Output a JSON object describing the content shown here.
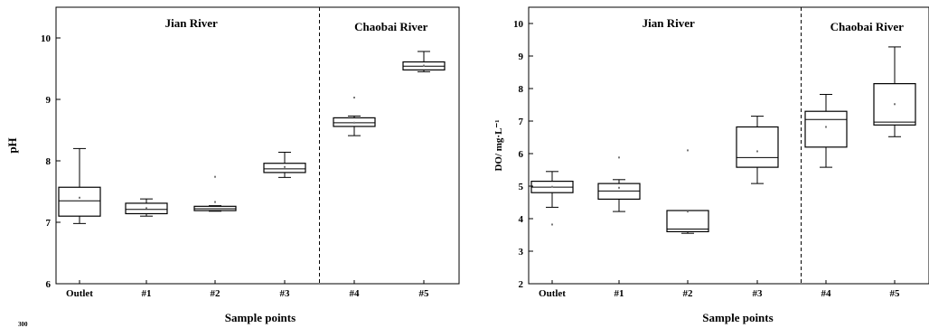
{
  "corner_fragment": "300",
  "chart_data": [
    {
      "type": "box",
      "xlabel": "Sample points",
      "ylabel": "pH",
      "ylim": [
        6,
        10.5
      ],
      "yticks": [
        6,
        7,
        8,
        9,
        10
      ],
      "categories": [
        "Outlet",
        "#1",
        "#2",
        "#3",
        "#4",
        "#5"
      ],
      "regions": [
        {
          "label": "Jian River",
          "categories": [
            "Outlet",
            "#1",
            "#2",
            "#3"
          ]
        },
        {
          "label": "Chaobai River",
          "categories": [
            "#4",
            "#5"
          ]
        }
      ],
      "divider_after_category": 4,
      "boxes": [
        {
          "min": 6.98,
          "q1": 7.1,
          "median": 7.35,
          "q3": 7.57,
          "max": 8.2,
          "mean": 7.4,
          "outliers": []
        },
        {
          "min": 7.1,
          "q1": 7.14,
          "median": 7.21,
          "q3": 7.31,
          "max": 7.38,
          "mean": 7.23,
          "outliers": []
        },
        {
          "min": 7.18,
          "q1": 7.19,
          "median": 7.22,
          "q3": 7.26,
          "max": 7.27,
          "mean": 7.33,
          "outliers": [
            7.74
          ]
        },
        {
          "min": 7.73,
          "q1": 7.81,
          "median": 7.87,
          "q3": 7.96,
          "max": 8.14,
          "mean": 7.9,
          "outliers": []
        },
        {
          "min": 8.41,
          "q1": 8.56,
          "median": 8.62,
          "q3": 8.7,
          "max": 8.73,
          "mean": 8.62,
          "outliers": [
            9.03
          ]
        },
        {
          "min": 9.45,
          "q1": 9.48,
          "median": 9.54,
          "q3": 9.61,
          "max": 9.78,
          "mean": 9.55,
          "outliers": []
        }
      ]
    },
    {
      "type": "box",
      "xlabel": "Sample points",
      "ylabel": "DO/ mg·L⁻¹",
      "ylim": [
        2,
        10.5
      ],
      "yticks": [
        2,
        3,
        4,
        5,
        6,
        7,
        8,
        9,
        10
      ],
      "categories": [
        "Outlet",
        "#1",
        "#2",
        "#3",
        "#4",
        "#5"
      ],
      "regions": [
        {
          "label": "Jian River",
          "categories": [
            "Outlet",
            "#1",
            "#2",
            "#3"
          ]
        },
        {
          "label": "Chaobai River",
          "categories": [
            "#4",
            "#5"
          ]
        }
      ],
      "divider_after_category": 4,
      "boxes": [
        {
          "min": 4.35,
          "q1": 4.8,
          "median": 4.97,
          "q3": 5.15,
          "max": 5.45,
          "mean": 4.98,
          "outliers": [
            3.82
          ]
        },
        {
          "min": 4.22,
          "q1": 4.6,
          "median": 4.85,
          "q3": 5.08,
          "max": 5.2,
          "mean": 4.95,
          "outliers": [
            5.88
          ]
        },
        {
          "min": 3.55,
          "q1": 3.6,
          "median": 3.68,
          "q3": 4.25,
          "max": 4.25,
          "mean": 4.22,
          "outliers": [
            6.1
          ]
        },
        {
          "min": 5.08,
          "q1": 5.58,
          "median": 5.88,
          "q3": 6.82,
          "max": 7.15,
          "mean": 6.07,
          "outliers": []
        },
        {
          "min": 5.58,
          "q1": 6.2,
          "median": 7.05,
          "q3": 7.3,
          "max": 7.82,
          "mean": 6.82,
          "outliers": []
        },
        {
          "min": 6.52,
          "q1": 6.88,
          "median": 6.97,
          "q3": 8.15,
          "max": 9.28,
          "mean": 7.52,
          "outliers": []
        }
      ]
    }
  ]
}
